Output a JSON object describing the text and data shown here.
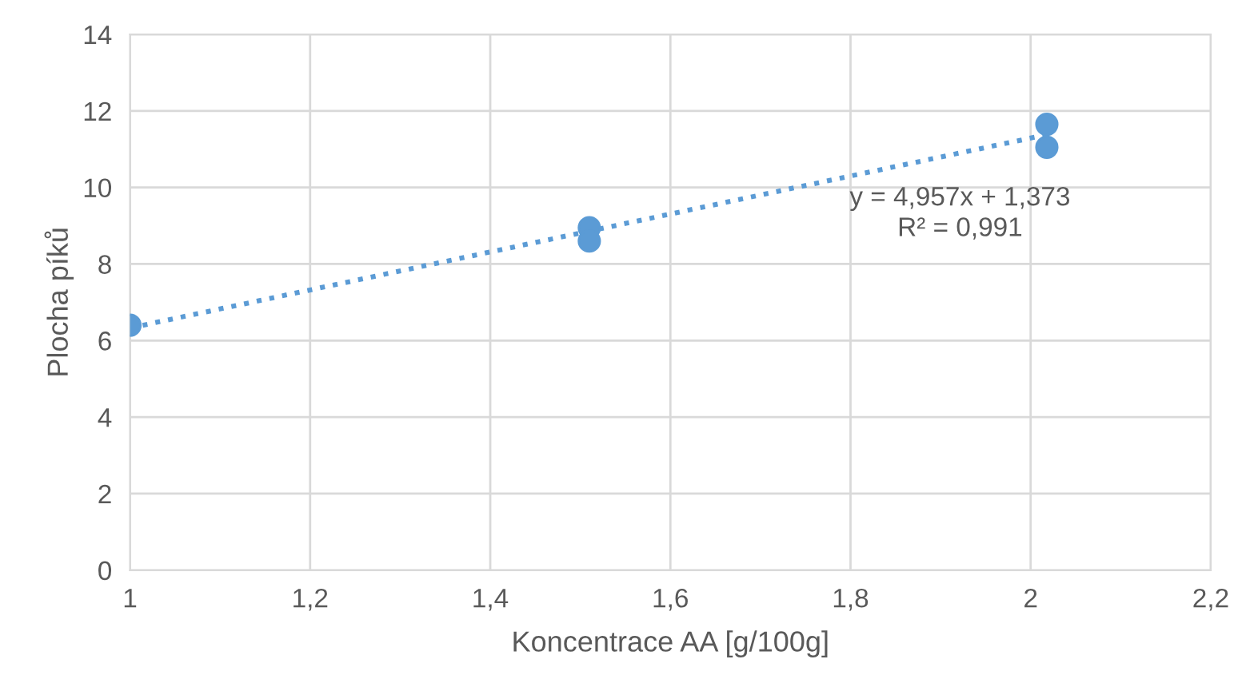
{
  "chart_data": {
    "type": "scatter",
    "xlabel": "Koncentrace AA [g/100g]",
    "ylabel": "Plocha píků",
    "series": [
      {
        "color": "#5b9bd5",
        "x": [
          1.0,
          1.51,
          1.51,
          2.018,
          2.018
        ],
        "values": [
          6.4,
          8.95,
          8.6,
          11.65,
          11.05
        ],
        "marker": "circle"
      },
      {
        "type": "line",
        "color": "#5b9bd5",
        "x": [
          1.0,
          2.018
        ],
        "values": [
          6.33,
          11.38
        ],
        "line_style": "dotted",
        "marker": "none"
      }
    ],
    "annotations": [
      "y = 4,957x + 1,373\nR² = 0,991"
    ],
    "xlim": [
      1,
      2.2
    ],
    "xticks": [
      {
        "value": 1,
        "label": "1"
      },
      {
        "value": 1.2,
        "label": "1,2"
      },
      {
        "value": 1.4,
        "label": "1,4"
      },
      {
        "value": 1.6,
        "label": "1,6"
      },
      {
        "value": 1.8,
        "label": "1,8"
      },
      {
        "value": 2,
        "label": "2"
      },
      {
        "value": 2.2,
        "label": "2,2"
      }
    ],
    "ylim": [
      0,
      14
    ],
    "yticks": [
      0,
      2,
      4,
      6,
      8,
      10,
      12,
      14
    ],
    "grid": true,
    "legend": false
  }
}
